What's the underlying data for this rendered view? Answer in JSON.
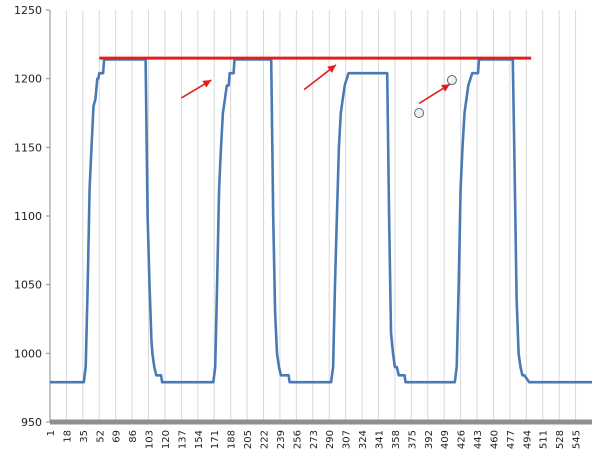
{
  "chart_data": {
    "type": "line",
    "title": "",
    "xlabel": "",
    "ylabel": "",
    "ylim": [
      950,
      1250
    ],
    "yticks": [
      950,
      1000,
      1050,
      1100,
      1150,
      1200,
      1250
    ],
    "xlim": [
      1,
      562
    ],
    "xticks": [
      1,
      18,
      35,
      52,
      69,
      86,
      103,
      120,
      137,
      154,
      171,
      188,
      205,
      222,
      239,
      256,
      273,
      290,
      307,
      324,
      341,
      358,
      375,
      392,
      409,
      426,
      443,
      460,
      477,
      494,
      511,
      528,
      545
    ],
    "grid": "vertical",
    "legend": "none",
    "colors": {
      "series": "#4a7ab5",
      "annotation": "#e02020",
      "grid": "#d9d9d9",
      "axis": "#8c8c8c",
      "marker_fill": "#eef2f6",
      "marker_stroke": "#5a6a7a"
    },
    "series": [
      {
        "x": [
          1,
          36,
          38,
          40,
          42,
          44,
          46,
          48,
          50,
          51,
          52,
          56,
          57,
          65,
          100,
          102,
          104,
          106,
          107,
          109,
          111,
          116,
          117,
          170,
          172,
          174,
          176,
          178,
          180,
          182,
          184,
          186,
          187,
          188,
          191,
          192,
          210,
          211,
          230,
          232,
          234,
          236,
          238,
          240,
          242,
          248,
          249,
          292,
          294,
          296,
          298,
          300,
          302,
          304,
          306,
          310,
          316,
          315,
          350,
          352,
          354,
          356,
          358,
          360,
          362,
          368,
          369,
          420,
          422,
          424,
          426,
          428,
          430,
          432,
          434,
          438,
          440,
          444,
          445,
          464,
          465,
          480,
          482,
          484,
          486,
          488,
          490,
          492,
          497,
          498,
          562
        ],
        "y": [
          979,
          979,
          990,
          1050,
          1120,
          1150,
          1180,
          1185,
          1200,
          1200,
          1204,
          1204,
          1214,
          1214,
          1214,
          1100,
          1050,
          1010,
          1000,
          990,
          984,
          984,
          979,
          979,
          990,
          1050,
          1120,
          1150,
          1175,
          1185,
          1195,
          1195,
          1204,
          1204,
          1204,
          1214,
          1214,
          1214,
          1214,
          1100,
          1030,
          1000,
          990,
          984,
          984,
          984,
          979,
          979,
          990,
          1050,
          1100,
          1150,
          1175,
          1185,
          1195,
          1204,
          1204,
          1204,
          1204,
          1100,
          1015,
          1000,
          990,
          990,
          984,
          984,
          979,
          979,
          990,
          1050,
          1120,
          1150,
          1175,
          1185,
          1195,
          1204,
          1204,
          1204,
          1214,
          1214,
          1214,
          1214,
          1130,
          1040,
          1000,
          990,
          984,
          984,
          979,
          979,
          979
        ]
      }
    ],
    "annotations": {
      "reference_line": {
        "x": [
          52,
          499
        ],
        "y": [
          1215,
          1215
        ]
      },
      "arrows": [
        {
          "from": [
            137,
            1186
          ],
          "to": [
            168,
            1199
          ]
        },
        {
          "from": [
            264,
            1192
          ],
          "to": [
            297,
            1210
          ]
        },
        {
          "from": [
            383,
            1182
          ],
          "to": [
            415,
            1196
          ]
        }
      ],
      "markers": [
        {
          "x": [
            383
          ],
          "y": [
            1175
          ]
        },
        {
          "x": [
            417
          ],
          "y": [
            1199
          ]
        }
      ]
    }
  }
}
